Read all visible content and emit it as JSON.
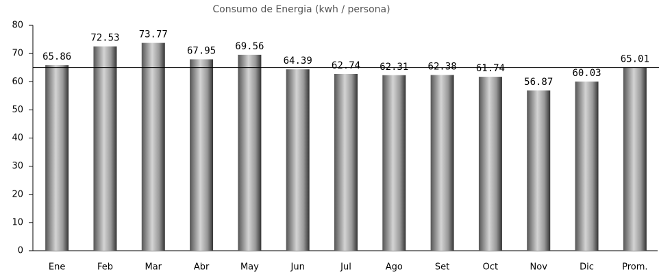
{
  "chart_data": {
    "type": "bar",
    "title": "Consumo de Energia (kwh / persona)",
    "categories": [
      "Ene",
      "Feb",
      "Mar",
      "Abr",
      "May",
      "Jun",
      "Jul",
      "Ago",
      "Set",
      "Oct",
      "Nov",
      "Dic",
      "Prom."
    ],
    "values": [
      65.86,
      72.53,
      73.77,
      67.95,
      69.56,
      64.39,
      62.74,
      62.31,
      62.38,
      61.74,
      56.87,
      60.03,
      65.01
    ],
    "color": "#888888",
    "ylim": [
      0,
      80
    ],
    "yticks": [
      0,
      10,
      20,
      30,
      40,
      50,
      60,
      70,
      80
    ],
    "grid": false
  }
}
